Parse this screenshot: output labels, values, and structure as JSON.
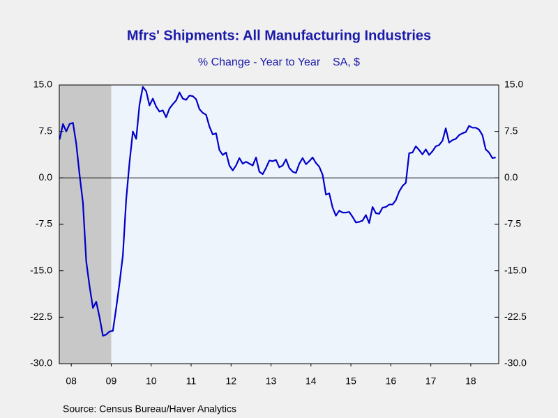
{
  "chart_data": {
    "type": "line",
    "title": "Mfrs' Shipments: All Manufacturing Industries",
    "subtitle": "% Change - Year to Year    SA, $",
    "source": "Source:  Census Bureau/Haver Analytics",
    "x": [
      2008.208,
      2008.292,
      2008.375,
      2008.458,
      2008.542,
      2008.625,
      2008.708,
      2008.792,
      2008.875,
      2008.958,
      2009.042,
      2009.125,
      2009.208,
      2009.292,
      2009.375,
      2009.458,
      2009.542,
      2009.625,
      2009.708,
      2009.792,
      2009.875,
      2009.958,
      2010.042,
      2010.125,
      2010.208,
      2010.292,
      2010.375,
      2010.458,
      2010.542,
      2010.625,
      2010.708,
      2010.792,
      2010.875,
      2010.958,
      2011.042,
      2011.125,
      2011.208,
      2011.292,
      2011.375,
      2011.458,
      2011.542,
      2011.625,
      2011.708,
      2011.792,
      2011.875,
      2011.958,
      2012.042,
      2012.125,
      2012.208,
      2012.292,
      2012.375,
      2012.458,
      2012.542,
      2012.625,
      2012.708,
      2012.792,
      2012.875,
      2012.958,
      2013.042,
      2013.125,
      2013.208,
      2013.292,
      2013.375,
      2013.458,
      2013.542,
      2013.625,
      2013.708,
      2013.792,
      2013.875,
      2013.958,
      2014.042,
      2014.125,
      2014.208,
      2014.292,
      2014.375,
      2014.458,
      2014.542,
      2014.625,
      2014.708,
      2014.792,
      2014.875,
      2014.958,
      2015.042,
      2015.125,
      2015.208,
      2015.292,
      2015.375,
      2015.458,
      2015.542,
      2015.625,
      2015.708,
      2015.792,
      2015.875,
      2015.958,
      2016.042,
      2016.125,
      2016.208,
      2016.292,
      2016.375,
      2016.458,
      2016.542,
      2016.625,
      2016.708,
      2016.792,
      2016.875,
      2016.958,
      2017.042,
      2017.125,
      2017.208,
      2017.292,
      2017.375,
      2017.458,
      2017.542,
      2017.625,
      2017.708,
      2017.792,
      2017.875,
      2017.958,
      2018.042,
      2018.125,
      2018.208,
      2018.292,
      2018.375,
      2018.458,
      2018.542,
      2018.625,
      2018.708,
      2018.792,
      2018.875,
      2018.958,
      2019.042,
      2019.125
    ],
    "series": [
      {
        "color": "#0000c8",
        "values": [
          6.2,
          8.7,
          7.5,
          8.7,
          8.9,
          5.5,
          0.5,
          -4.0,
          -13.5,
          -17.5,
          -21.0,
          -20.0,
          -22.5,
          -25.5,
          -25.3,
          -24.8,
          -24.7,
          -21.0,
          -17.0,
          -12.5,
          -3.5,
          2.5,
          7.5,
          6.3,
          11.8,
          14.7,
          14.0,
          11.7,
          12.8,
          11.5,
          10.7,
          10.9,
          9.8,
          11.2,
          11.9,
          12.5,
          13.8,
          12.8,
          12.6,
          13.3,
          13.2,
          12.7,
          11.1,
          10.5,
          10.2,
          8.3,
          7.0,
          7.2,
          4.5,
          3.7,
          4.1,
          2.0,
          1.2,
          2.0,
          3.2,
          2.3,
          2.6,
          2.3,
          2.0,
          3.3,
          1.0,
          0.6,
          1.6,
          2.8,
          2.7,
          2.9,
          1.7,
          2.0,
          3.0,
          1.6,
          1.0,
          0.8,
          2.3,
          3.2,
          2.2,
          2.7,
          3.3,
          2.4,
          1.8,
          0.5,
          -2.7,
          -2.5,
          -4.8,
          -6.1,
          -5.3,
          -5.6,
          -5.6,
          -5.5,
          -6.3,
          -7.2,
          -7.1,
          -6.9,
          -6.0,
          -7.3,
          -4.7,
          -5.7,
          -5.8,
          -4.8,
          -4.7,
          -4.3,
          -4.3,
          -3.6,
          -2.2,
          -1.3,
          -0.8,
          4.0,
          4.1,
          5.1,
          4.5,
          3.8,
          4.6,
          3.7,
          4.3,
          5.1,
          5.3,
          6.0,
          8.0,
          5.7,
          6.1,
          6.3,
          6.9,
          7.2,
          7.4,
          8.4,
          8.1,
          8.1,
          7.8,
          6.9,
          4.6,
          4.1,
          3.2,
          3.3
        ]
      }
    ],
    "recession": [
      2007.917,
      2009.5
    ],
    "xlim": [
      2008.2,
      2019.2
    ],
    "xticks": [
      {
        "value": 2008.5,
        "label": "08"
      },
      {
        "value": 2009.5,
        "label": "09"
      },
      {
        "value": 2010.5,
        "label": "10"
      },
      {
        "value": 2011.5,
        "label": "11"
      },
      {
        "value": 2012.5,
        "label": "12"
      },
      {
        "value": 2013.5,
        "label": "13"
      },
      {
        "value": 2014.5,
        "label": "14"
      },
      {
        "value": 2015.5,
        "label": "15"
      },
      {
        "value": 2016.5,
        "label": "16"
      },
      {
        "value": 2017.5,
        "label": "17"
      },
      {
        "value": 2018.5,
        "label": "18"
      }
    ],
    "ylim": [
      -30,
      15
    ],
    "yticks": [
      {
        "value": 15,
        "label": "15.0"
      },
      {
        "value": 7.5,
        "label": "7.5"
      },
      {
        "value": 0,
        "label": "0.0"
      },
      {
        "value": -7.5,
        "label": "-7.5"
      },
      {
        "value": -15,
        "label": "-15.0"
      },
      {
        "value": -22.5,
        "label": "-22.5"
      },
      {
        "value": -30,
        "label": "-30.0"
      }
    ],
    "y2lim": [
      -30,
      15
    ],
    "y2ticks": [
      {
        "value": 15,
        "label": "15.0"
      },
      {
        "value": 7.5,
        "label": "7.5"
      },
      {
        "value": 0,
        "label": "0.0"
      },
      {
        "value": -7.5,
        "label": "-7.5"
      },
      {
        "value": -15,
        "label": "-15.0"
      },
      {
        "value": -22.5,
        "label": "-22.5"
      },
      {
        "value": -30,
        "label": "-30.0"
      }
    ]
  }
}
